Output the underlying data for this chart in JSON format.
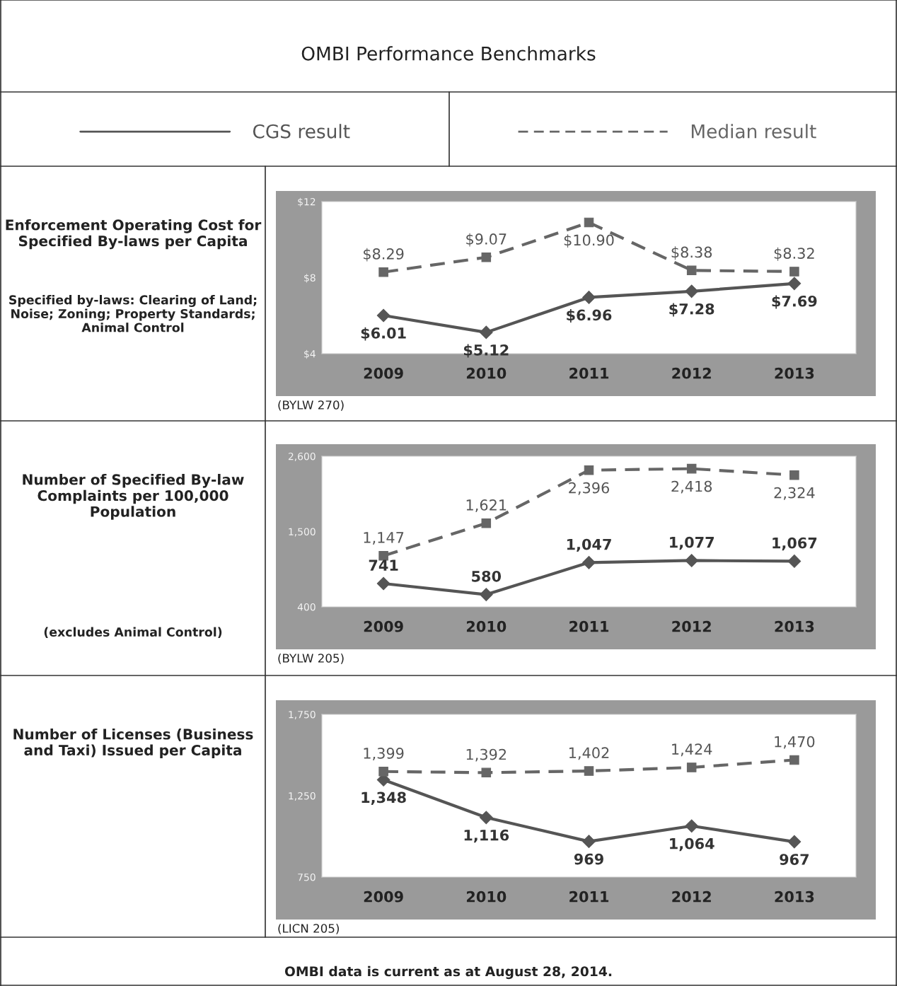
{
  "chart_data": [
    {
      "type": "line",
      "title": "Enforcement Operating Cost for Specified By-laws per Capita",
      "subtitle": "Specified by-laws: Clearing of Land; Noise; Zoning; Property Standards; Animal Control",
      "annotations": [
        "OMBI Performance Benchmarks",
        "(BYLW 270)"
      ],
      "categories": [
        "2009",
        "2010",
        "2011",
        "2012",
        "2013"
      ],
      "series": [
        {
          "name": "CGS result",
          "color": "#555555",
          "line_style": "solid",
          "marker": "diamond",
          "values": [
            6.01,
            5.12,
            6.96,
            7.28,
            7.69
          ],
          "value_labels": [
            "$6.01",
            "$5.12",
            "$6.96",
            "$7.28",
            "$7.69"
          ]
        },
        {
          "name": "Median result",
          "color": "#666666",
          "line_style": "dashed",
          "marker": "square",
          "values": [
            8.29,
            9.07,
            10.9,
            8.38,
            8.32
          ],
          "value_labels": [
            "$8.29",
            "$9.07",
            "$10.90",
            "$8.38",
            "$8.32"
          ]
        }
      ],
      "ylim": [
        4,
        12
      ],
      "yticks": [
        {
          "value": 4,
          "label": "$4"
        },
        {
          "value": 8,
          "label": "$8"
        },
        {
          "value": 12,
          "label": "$12"
        }
      ],
      "grid": false,
      "legend": "top"
    },
    {
      "type": "line",
      "title": "Number of Specified By-law Complaints per 100,000 Population",
      "subtitle": "(excludes Animal Control)",
      "annotations": [
        "(BYLW 205)"
      ],
      "categories": [
        "2009",
        "2010",
        "2011",
        "2012",
        "2013"
      ],
      "series": [
        {
          "color": "#555555",
          "line_style": "solid",
          "marker": "diamond",
          "values": [
            741,
            580,
            1047,
            1077,
            1067
          ],
          "value_labels": [
            "741",
            "580",
            "1,047",
            "1,077",
            "1,067"
          ]
        },
        {
          "color": "#666666",
          "line_style": "dashed",
          "marker": "square",
          "values": [
            1147,
            1621,
            2396,
            2418,
            2324
          ],
          "value_labels": [
            "1,147",
            "1,621",
            "2,396",
            "2,418",
            "2,324"
          ]
        }
      ],
      "ylim": [
        400,
        2600
      ],
      "yticks": [
        {
          "value": 400,
          "label": "400"
        },
        {
          "value": 1500,
          "label": "1,500"
        },
        {
          "value": 2600,
          "label": "2,600"
        }
      ],
      "grid": false
    },
    {
      "type": "line",
      "title": "Number of Licenses (Business and Taxi) Issued per Capita",
      "annotations": [
        "(LICN 205)",
        "OMBI data is current as at August 28, 2014."
      ],
      "categories": [
        "2009",
        "2010",
        "2011",
        "2012",
        "2013"
      ],
      "series": [
        {
          "color": "#555555",
          "line_style": "solid",
          "marker": "diamond",
          "values": [
            1348,
            1116,
            969,
            1064,
            967
          ],
          "value_labels": [
            "1,348",
            "1,116",
            "969",
            "1,064",
            "967"
          ]
        },
        {
          "color": "#666666",
          "line_style": "dashed",
          "marker": "square",
          "values": [
            1399,
            1392,
            1402,
            1424,
            1470
          ],
          "value_labels": [
            "1,399",
            "1,392",
            "1,402",
            "1,424",
            "1,470"
          ]
        }
      ],
      "ylim": [
        750,
        1750
      ],
      "yticks": [
        {
          "value": 750,
          "label": "750"
        },
        {
          "value": 1250,
          "label": "1,250"
        },
        {
          "value": 1750,
          "label": "1,750"
        }
      ],
      "grid": false
    }
  ]
}
